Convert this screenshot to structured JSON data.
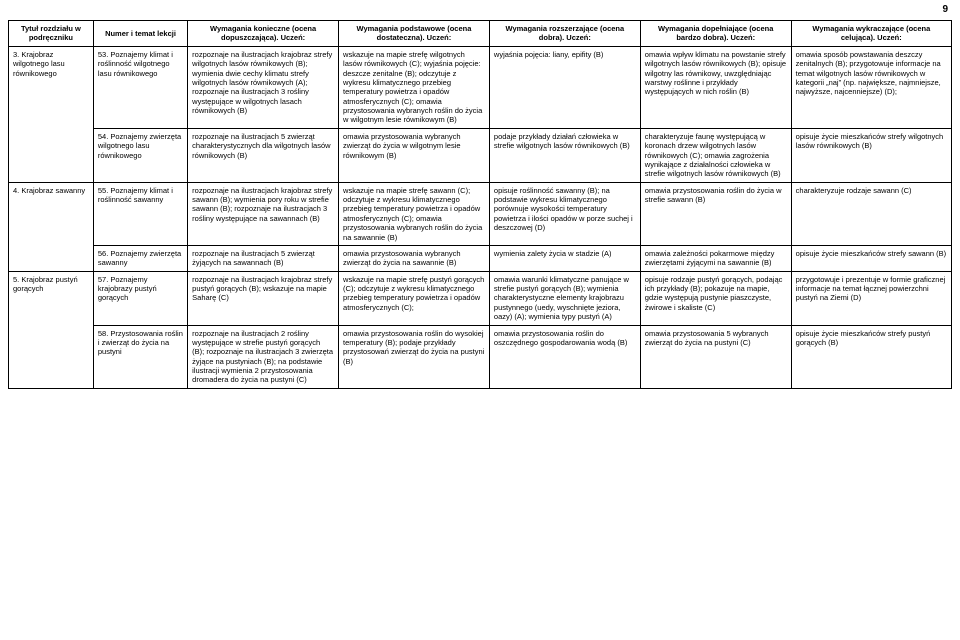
{
  "page_number": "9",
  "columns": [
    {
      "label": "Tytuł rozdziału\nw podręczniku",
      "width": "9%"
    },
    {
      "label": "Numer\ni temat lekcji",
      "width": "10%"
    },
    {
      "label": "Wymagania konieczne (ocena dopuszczająca). Uczeń:",
      "width": "16%"
    },
    {
      "label": "Wymagania podstawowe (ocena dostateczna). Uczeń:",
      "width": "16%"
    },
    {
      "label": "Wymagania rozszerzające (ocena dobra). Uczeń:",
      "width": "16%"
    },
    {
      "label": "Wymagania dopełniające (ocena bardzo dobra). Uczeń:",
      "width": "16%"
    },
    {
      "label": "Wymagania wykraczające (ocena celująca). Uczeń:",
      "width": "17%"
    }
  ],
  "rows": [
    {
      "chapter": "3. Krajobraz wilgotnego lasu równikowego",
      "chapter_rowspan": 2,
      "lesson": "53. Poznajemy klimat i roślinność wilgotnego lasu równikowego",
      "c2": "rozpoznaje na ilustracjach krajobraz strefy wilgotnych lasów równikowych (B); wymienia dwie cechy klimatu strefy wilgotnych lasów równikowych (A); rozpoznaje na ilustracjach 3 rośliny występujące w wilgotnych lasach równikowych (B)",
      "c3": "wskazuje na mapie strefę wilgotnych lasów równikowych (C); wyjaśnia pojęcie: deszcze zenitalne (B); odczytuje z wykresu klimatycznego przebieg temperatury powietrza i opadów atmosferycznych (C); omawia przystosowania wybranych roślin do życia w wilgotnym lesie równikowym (B)",
      "c4": "wyjaśnia pojęcia: liany, epifity (B)",
      "c5": "omawia wpływ klimatu na powstanie strefy wilgotnych lasów równikowych (B); opisuje wilgotny las równikowy, uwzględniając warstwy roślinne i przykłady występujących w nich roślin (B)",
      "c6": "omawia sposób powstawania deszczy zenitalnych (B); przygotowuje informacje na temat wilgotnych lasów równikowych w kategorii „naj” (np. największe, najmniejsze, najwyższe, najcenniejsze) (D);"
    },
    {
      "lesson": "54. Poznajemy zwierzęta wilgotnego lasu równikowego",
      "c2": "rozpoznaje na ilustracjach 5 zwierząt charakterystycznych dla wilgotnych lasów równikowych (B)",
      "c3": "omawia przystosowania wybranych zwierząt do życia w wilgotnym lesie równikowym (B)",
      "c4": "podaje przykłady działań człowieka w strefie wilgotnych lasów równikowych (B)",
      "c5": "charakteryzuje faunę występującą w koronach drzew wilgotnych lasów równikowych (C); omawia zagrożenia wynikające z działalności człowieka w strefie wilgotnych lasów równikowych (B)",
      "c6": "opisuje życie mieszkańców strefy wilgotnych lasów równikowych (B)"
    },
    {
      "chapter": "4. Krajobraz sawanny",
      "chapter_rowspan": 2,
      "lesson": "55. Poznajemy klimat i roślinność sawanny",
      "c2": "rozpoznaje na ilustracjach krajobraz strefy sawann (B); wymienia pory roku w strefie sawann (B); rozpoznaje na ilustracjach 3 rośliny występujące na sawannach (B)",
      "c3": "wskazuje na mapie strefę sawann (C); odczytuje z wykresu klimatycznego przebieg temperatury powietrza i opadów atmosferycznych (C); omawia przystosowania wybranych roślin do życia na sawannie (B)",
      "c4": "opisuje roślinność sawanny (B); na podstawie wykresu klimatycznego porównuje wysokości temperatury powietrza i ilości opadów w porze suchej i deszczowej (D)",
      "c5": "omawia przystosowania roślin do życia w strefie sawann (B)",
      "c6": "charakteryzuje rodzaje sawann (C)"
    },
    {
      "lesson": "56. Poznajemy zwierzęta sawanny",
      "c2": "rozpoznaje na ilustracjach 5 zwierząt żyjących na sawannach (B)",
      "c3": "omawia przystosowania wybranych zwierząt do życia na sawannie (B)",
      "c4": "wymienia zalety życia w stadzie (A)",
      "c5": "omawia zależności pokarmowe między zwierzętami żyjącymi na sawannie (B)",
      "c6": "opisuje życie mieszkańców strefy sawann (B)"
    },
    {
      "chapter": "5. Krajobraz pustyń gorących",
      "chapter_rowspan": 2,
      "lesson": "57. Poznajemy krajobrazy pustyń gorących",
      "c2": "rozpoznaje na ilustracjach krajobraz strefy pustyń gorących (B); wskazuje na mapie Saharę (C)",
      "c3": "wskazuje na mapie strefę pustyń gorących (C); odczytuje z wykresu klimatycznego przebieg temperatury powietrza i opadów atmosferycznych (C);",
      "c4": "omawia warunki klimatyczne panujące w strefie pustyń gorących (B); wymienia charakterystyczne elementy krajobrazu pustynnego (uedy, wyschnięte jeziora, oazy) (A); wymienia typy pustyń (A)",
      "c5": "opisuje rodzaje pustyń gorących, podając ich przykłady (B); pokazuje na mapie, gdzie występują pustynie piaszczyste, żwirowe i skaliste (C)",
      "c6": "przygotowuje i prezentuje w formie graficznej informacje na temat łącznej powierzchni pustyń na Ziemi (D)"
    },
    {
      "lesson": "58. Przystosowania roślin i zwierząt do życia na pustyni",
      "c2": "rozpoznaje na ilustracjach 2 rośliny występujące w strefie pustyń gorących (B); rozpoznaje na ilustracjach 3 zwierzęta żyjące na pustyniach (B); na podstawie ilustracji wymienia 2 przystosowania dromadera do życia na pustyni (C)",
      "c3": "omawia przystosowania roślin do wysokiej temperatury (B); podaje przykłady przystosowań zwierząt do życia na pustyni (B)",
      "c4": "omawia przystosowania roślin do oszczędnego gospodarowania wodą (B)",
      "c5": "omawia przystosowania 5 wybranych zwierząt do życia na pustyni (C)",
      "c6": "opisuje życie mieszkańców strefy pustyń gorących (B)"
    }
  ]
}
